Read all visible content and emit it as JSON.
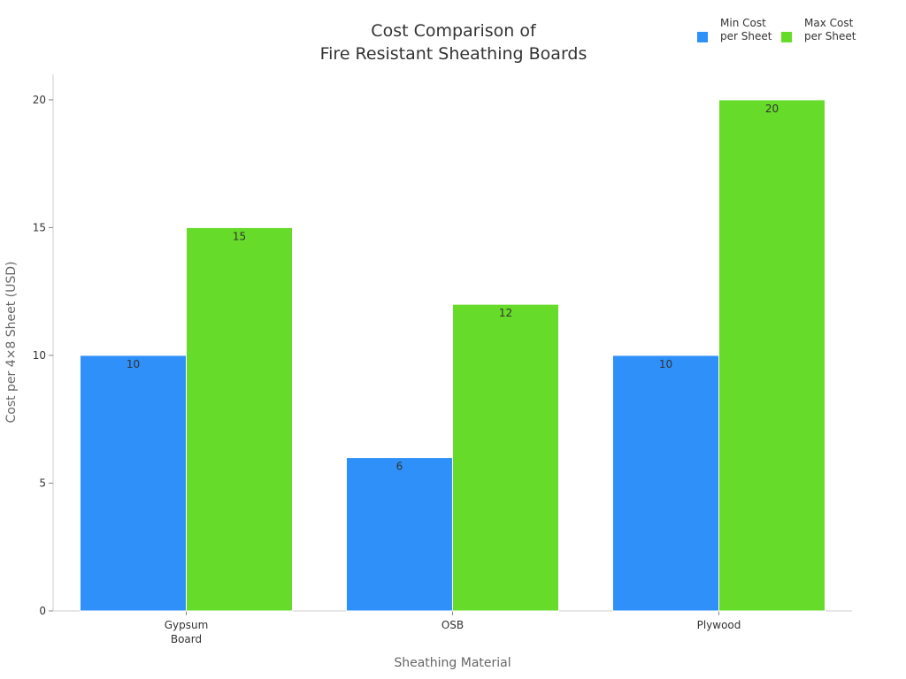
{
  "chart_data": {
    "type": "bar",
    "title": "Cost Comparison of\nFire Resistant Sheathing Boards",
    "xlabel": "Sheathing Material",
    "ylabel": "Cost per 4×8 Sheet (USD)",
    "categories": [
      "Gypsum\nBoard",
      "OSB",
      "Plywood"
    ],
    "series": [
      {
        "name": "Min Cost per Sheet",
        "values": [
          10,
          6,
          10
        ],
        "color": "#2E90F8"
      },
      {
        "name": "Max Cost per Sheet",
        "values": [
          15,
          12,
          20
        ],
        "color": "#66DB29"
      }
    ],
    "ylim": [
      0,
      21
    ],
    "yticks": [
      0,
      5,
      10,
      15,
      20
    ],
    "grid": false,
    "legend": "top-right",
    "data_labels": true
  }
}
